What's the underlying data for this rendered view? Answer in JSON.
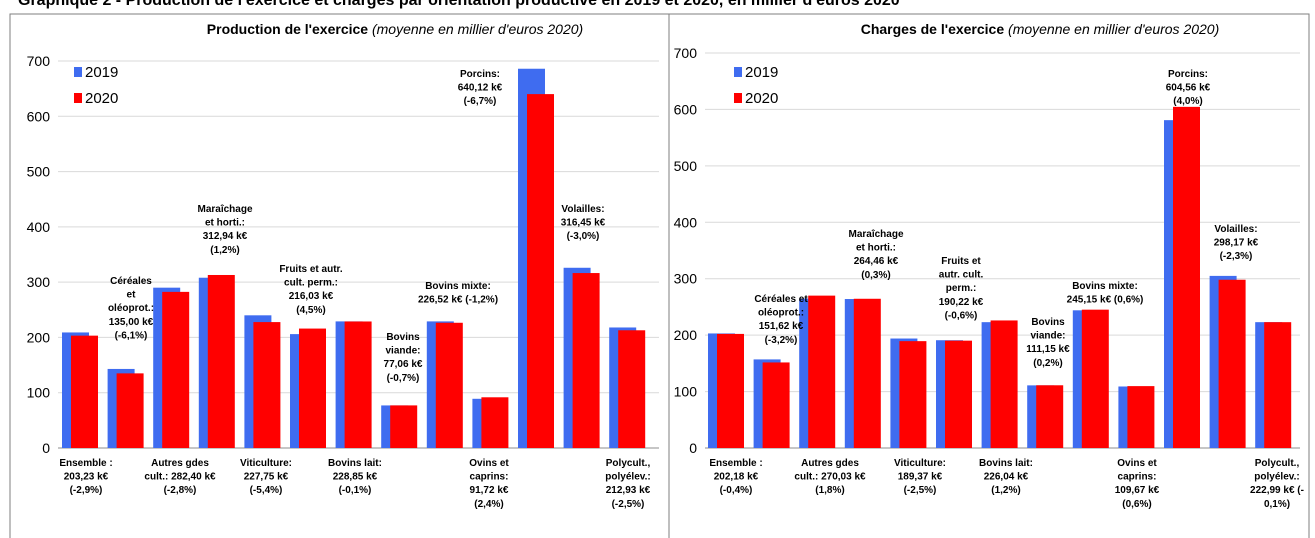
{
  "page_title": "Graphique 2 - Production de l'exercice et charges par orientation productive en 2019 et 2020, en millier d'euros 2020",
  "chart_data": [
    {
      "type": "bar",
      "title": "Production de l'exercice",
      "subtitle": "(moyenne en millier d'euros 2020)",
      "ylim": [
        0,
        700
      ],
      "yticks": [
        "0",
        "100",
        "200",
        "300",
        "400",
        "500",
        "600",
        "700"
      ],
      "grid": true,
      "legend_position": "top-left",
      "colors": {
        "2019": "#3f6cf0",
        "2020": "#ff0000"
      },
      "categories": [
        "Ensemble",
        "Céréales et oléoprot.",
        "Autres gdes cult.",
        "Maraîchage et horti.",
        "Viticulture",
        "Fruits et autr. cult. perm.",
        "Bovins lait",
        "Bovins viande",
        "Bovins mixte",
        "Ovins et caprins",
        "Porcins",
        "Volailles",
        "Polycult., polyélev."
      ],
      "series": [
        {
          "name": "2019",
          "values": [
            209,
            143,
            290,
            308,
            240,
            206,
            229,
            77,
            229,
            89,
            686,
            326,
            218
          ]
        },
        {
          "name": "2020",
          "values": [
            203.23,
            135.0,
            282.4,
            312.94,
            227.75,
            216.03,
            228.85,
            77.06,
            226.52,
            91.72,
            640.12,
            316.45,
            212.93
          ]
        }
      ],
      "annotations": [
        {
          "lines": [
            "Ensemble :",
            "203,23 k€",
            "(-2,9%)"
          ]
        },
        {
          "lines": [
            "Céréales",
            "et",
            "oléoprot.:",
            "135,00 k€",
            "(-6,1%)"
          ]
        },
        {
          "lines": [
            "Autres gdes",
            "cult.: 282,40 k€",
            "(-2,8%)"
          ]
        },
        {
          "lines": [
            "Maraîchage",
            "et horti.:",
            "312,94 k€",
            "(1,2%)"
          ]
        },
        {
          "lines": [
            "Viticulture:",
            "227,75 k€",
            "(-5,4%)"
          ]
        },
        {
          "lines": [
            "Fruits et autr.",
            "cult. perm.:",
            "216,03 k€",
            "(4,5%)"
          ]
        },
        {
          "lines": [
            "Bovins lait:",
            "228,85 k€",
            "(-0,1%)"
          ]
        },
        {
          "lines": [
            "Bovins",
            "viande:",
            "77,06 k€",
            "(-0,7%)"
          ]
        },
        {
          "lines": [
            "Bovins mixte:",
            "226,52 k€ (-1,2%)"
          ]
        },
        {
          "lines": [
            "Ovins et",
            "caprins:",
            "91,72 k€",
            "(2,4%)"
          ]
        },
        {
          "lines": [
            "Porcins:",
            "640,12 k€",
            "(-6,7%)"
          ]
        },
        {
          "lines": [
            "Volailles:",
            "316,45 k€",
            "(-3,0%)"
          ]
        },
        {
          "lines": [
            "Polycult.,",
            "polyélev.:",
            "212,93 k€",
            "(-2,5%)"
          ]
        }
      ]
    },
    {
      "type": "bar",
      "title": "Charges de l'exercice",
      "subtitle": "(moyenne en millier d'euros 2020)",
      "ylim": [
        0,
        700
      ],
      "yticks": [
        "0",
        "100",
        "200",
        "300",
        "400",
        "500",
        "600",
        "700"
      ],
      "grid": true,
      "legend_position": "top-left",
      "colors": {
        "2019": "#3f6cf0",
        "2020": "#ff0000"
      },
      "categories": [
        "Ensemble",
        "Céréales et oléoprot.",
        "Autres gdes cult.",
        "Maraîchage et horti.",
        "Viticulture",
        "Fruits et autr. cult. perm.",
        "Bovins lait",
        "Bovins viande",
        "Bovins mixte",
        "Ovins et caprins",
        "Porcins",
        "Volailles",
        "Polycult., polyélev."
      ],
      "series": [
        {
          "name": "2019",
          "values": [
            203,
            157,
            265,
            264,
            194,
            191,
            223,
            111,
            244,
            109,
            581,
            305,
            223
          ]
        },
        {
          "name": "2020",
          "values": [
            202.18,
            151.62,
            270.03,
            264.46,
            189.37,
            190.22,
            226.04,
            111.15,
            245.15,
            109.67,
            604.56,
            298.17,
            222.99
          ]
        }
      ],
      "annotations": [
        {
          "lines": [
            "Ensemble :",
            "202,18 k€",
            "(-0,4%)"
          ]
        },
        {
          "lines": [
            "Céréales et",
            "oléoprot.:",
            "151,62 k€",
            "(-3,2%)"
          ]
        },
        {
          "lines": [
            "Autres gdes",
            "cult.: 270,03 k€",
            "(1,8%)"
          ]
        },
        {
          "lines": [
            "Maraîchage",
            "et horti.:",
            "264,46 k€",
            "(0,3%)"
          ]
        },
        {
          "lines": [
            "Viticulture:",
            "189,37 k€",
            "(-2,5%)"
          ]
        },
        {
          "lines": [
            "Fruits et",
            "autr. cult.",
            "perm.:",
            "190,22 k€",
            "(-0,6%)"
          ]
        },
        {
          "lines": [
            "Bovins lait:",
            "226,04 k€",
            "(1,2%)"
          ]
        },
        {
          "lines": [
            "Bovins",
            "viande:",
            "111,15 k€",
            "(0,2%)"
          ]
        },
        {
          "lines": [
            "Bovins mixte:",
            "245,15 k€ (0,6%)"
          ]
        },
        {
          "lines": [
            "Ovins et",
            "caprins:",
            "109,67 k€",
            "(0,6%)"
          ]
        },
        {
          "lines": [
            "Porcins:",
            "604,56 k€",
            "(4,0%)"
          ]
        },
        {
          "lines": [
            "Volailles:",
            "298,17 k€",
            "(-2,3%)"
          ]
        },
        {
          "lines": [
            "Polycult.,",
            "polyélev.:",
            "222,99 k€ (-",
            "0,1%)"
          ]
        }
      ]
    }
  ]
}
